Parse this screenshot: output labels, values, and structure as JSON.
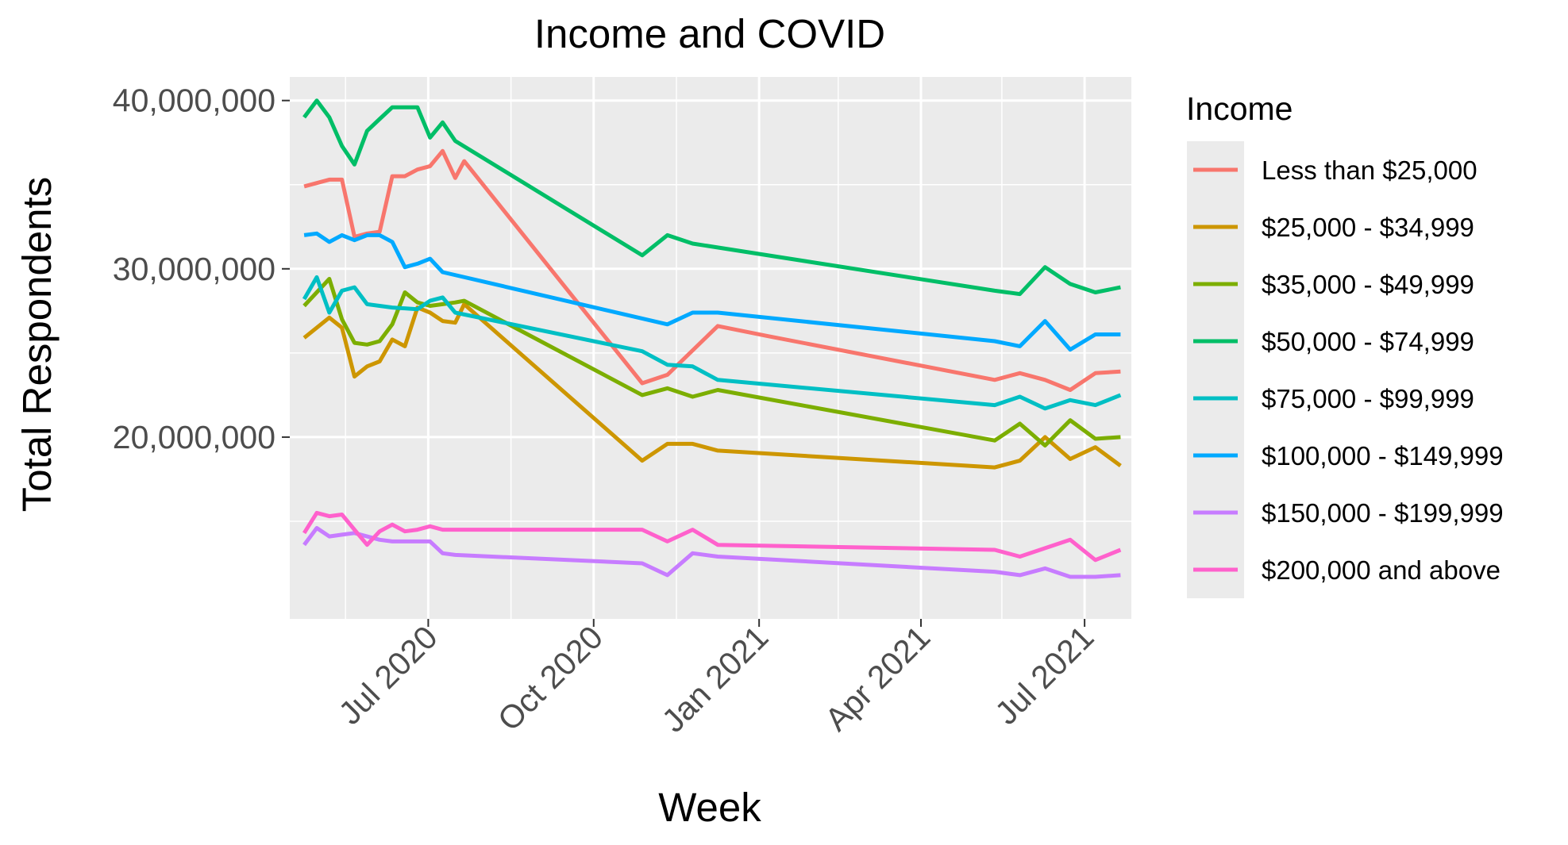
{
  "chart_data": {
    "type": "line",
    "title": "Income and COVID",
    "xlabel": "Week",
    "ylabel": "Total Respondents",
    "legend_title": "Income",
    "legend_position": "right",
    "grid": true,
    "background": "#EBEBEB",
    "xlim": [
      "2020-04-15",
      "2021-07-27"
    ],
    "ylim": [
      9200000,
      41400000
    ],
    "x_ticks": [
      {
        "date": "2020-07-01",
        "label": "Jul 2020"
      },
      {
        "date": "2020-10-01",
        "label": "Oct 2020"
      },
      {
        "date": "2021-01-01",
        "label": "Jan 2021"
      },
      {
        "date": "2021-04-01",
        "label": "Apr 2021"
      },
      {
        "date": "2021-07-01",
        "label": "Jul 2021"
      }
    ],
    "x_minor_ticks": [
      "2020-05-16",
      "2020-08-16",
      "2020-11-16",
      "2021-02-14",
      "2021-05-16"
    ],
    "y_ticks": [
      {
        "value": 20000000,
        "label": "20,000,000"
      },
      {
        "value": 30000000,
        "label": "30,000,000"
      },
      {
        "value": 40000000,
        "label": "40,000,000"
      }
    ],
    "y_minor_ticks": [
      15000000,
      25000000,
      35000000
    ],
    "series": [
      {
        "name": "Less than $25,000",
        "color": "#F8766D",
        "points": [
          [
            "2020-04-23",
            34900000
          ],
          [
            "2020-05-07",
            35300000
          ],
          [
            "2020-05-14",
            35300000
          ],
          [
            "2020-05-21",
            31900000
          ],
          [
            "2020-05-28",
            32100000
          ],
          [
            "2020-06-04",
            32200000
          ],
          [
            "2020-06-11",
            35500000
          ],
          [
            "2020-06-18",
            35500000
          ],
          [
            "2020-06-25",
            35900000
          ],
          [
            "2020-07-02",
            36100000
          ],
          [
            "2020-07-09",
            37000000
          ],
          [
            "2020-07-16",
            35400000
          ],
          [
            "2020-07-21",
            36400000
          ],
          [
            "2020-10-28",
            23200000
          ],
          [
            "2020-11-11",
            23700000
          ],
          [
            "2020-12-09",
            26600000
          ],
          [
            "2021-01-06",
            26000000
          ],
          [
            "2021-05-12",
            23400000
          ],
          [
            "2021-05-26",
            23800000
          ],
          [
            "2021-06-09",
            23400000
          ],
          [
            "2021-06-23",
            22800000
          ],
          [
            "2021-07-07",
            23800000
          ],
          [
            "2021-07-21",
            23900000
          ]
        ]
      },
      {
        "name": "$25,000 - $34,999",
        "color": "#CD9600",
        "points": [
          [
            "2020-04-23",
            25900000
          ],
          [
            "2020-05-07",
            27100000
          ],
          [
            "2020-05-14",
            26500000
          ],
          [
            "2020-05-21",
            23600000
          ],
          [
            "2020-05-28",
            24200000
          ],
          [
            "2020-06-04",
            24500000
          ],
          [
            "2020-06-11",
            25800000
          ],
          [
            "2020-06-18",
            25400000
          ],
          [
            "2020-06-25",
            27700000
          ],
          [
            "2020-07-02",
            27400000
          ],
          [
            "2020-07-09",
            26900000
          ],
          [
            "2020-07-16",
            26800000
          ],
          [
            "2020-07-21",
            27900000
          ],
          [
            "2020-10-28",
            18600000
          ],
          [
            "2020-11-11",
            19600000
          ],
          [
            "2020-11-25",
            19600000
          ],
          [
            "2020-12-09",
            19200000
          ],
          [
            "2021-05-12",
            18200000
          ],
          [
            "2021-05-26",
            18600000
          ],
          [
            "2021-06-09",
            20000000
          ],
          [
            "2021-06-23",
            18700000
          ],
          [
            "2021-07-07",
            19400000
          ],
          [
            "2021-07-21",
            18300000
          ]
        ]
      },
      {
        "name": "$35,000 - $49,999",
        "color": "#7CAE00",
        "points": [
          [
            "2020-04-23",
            27800000
          ],
          [
            "2020-05-07",
            29400000
          ],
          [
            "2020-05-14",
            27000000
          ],
          [
            "2020-05-21",
            25600000
          ],
          [
            "2020-05-28",
            25500000
          ],
          [
            "2020-06-04",
            25700000
          ],
          [
            "2020-06-11",
            26700000
          ],
          [
            "2020-06-18",
            28600000
          ],
          [
            "2020-06-25",
            28000000
          ],
          [
            "2020-07-02",
            27800000
          ],
          [
            "2020-07-09",
            27900000
          ],
          [
            "2020-07-16",
            28000000
          ],
          [
            "2020-07-21",
            28100000
          ],
          [
            "2020-10-28",
            22500000
          ],
          [
            "2020-11-11",
            22900000
          ],
          [
            "2020-11-25",
            22400000
          ],
          [
            "2020-12-09",
            22800000
          ],
          [
            "2021-05-12",
            19800000
          ],
          [
            "2021-05-26",
            20800000
          ],
          [
            "2021-06-09",
            19500000
          ],
          [
            "2021-06-23",
            21000000
          ],
          [
            "2021-07-07",
            19900000
          ],
          [
            "2021-07-21",
            20000000
          ]
        ]
      },
      {
        "name": "$50,000 - $74,999",
        "color": "#00BE67",
        "points": [
          [
            "2020-04-23",
            39000000
          ],
          [
            "2020-04-30",
            40000000
          ],
          [
            "2020-05-07",
            39000000
          ],
          [
            "2020-05-14",
            37300000
          ],
          [
            "2020-05-21",
            36200000
          ],
          [
            "2020-05-28",
            38200000
          ],
          [
            "2020-06-04",
            38900000
          ],
          [
            "2020-06-11",
            39600000
          ],
          [
            "2020-06-25",
            39600000
          ],
          [
            "2020-07-02",
            37800000
          ],
          [
            "2020-07-09",
            38700000
          ],
          [
            "2020-07-16",
            37600000
          ],
          [
            "2020-10-28",
            30800000
          ],
          [
            "2020-11-11",
            32000000
          ],
          [
            "2020-11-25",
            31500000
          ],
          [
            "2021-05-12",
            28700000
          ],
          [
            "2021-05-26",
            28500000
          ],
          [
            "2021-06-09",
            30100000
          ],
          [
            "2021-06-23",
            29100000
          ],
          [
            "2021-07-07",
            28600000
          ],
          [
            "2021-07-21",
            28900000
          ]
        ]
      },
      {
        "name": "$75,000 - $99,999",
        "color": "#00BFC4",
        "points": [
          [
            "2020-04-23",
            28200000
          ],
          [
            "2020-04-30",
            29500000
          ],
          [
            "2020-05-07",
            27400000
          ],
          [
            "2020-05-14",
            28700000
          ],
          [
            "2020-05-21",
            28900000
          ],
          [
            "2020-05-28",
            27900000
          ],
          [
            "2020-06-04",
            27800000
          ],
          [
            "2020-06-11",
            27700000
          ],
          [
            "2020-06-25",
            27600000
          ],
          [
            "2020-07-02",
            28100000
          ],
          [
            "2020-07-09",
            28300000
          ],
          [
            "2020-07-16",
            27400000
          ],
          [
            "2020-10-28",
            25100000
          ],
          [
            "2020-11-11",
            24300000
          ],
          [
            "2020-11-25",
            24200000
          ],
          [
            "2020-12-09",
            23400000
          ],
          [
            "2021-05-12",
            21900000
          ],
          [
            "2021-05-26",
            22400000
          ],
          [
            "2021-06-09",
            21700000
          ],
          [
            "2021-06-23",
            22200000
          ],
          [
            "2021-07-07",
            21900000
          ],
          [
            "2021-07-21",
            22500000
          ]
        ]
      },
      {
        "name": "$100,000 - $149,999",
        "color": "#00A9FF",
        "points": [
          [
            "2020-04-23",
            32000000
          ],
          [
            "2020-04-30",
            32100000
          ],
          [
            "2020-05-07",
            31600000
          ],
          [
            "2020-05-14",
            32000000
          ],
          [
            "2020-05-21",
            31700000
          ],
          [
            "2020-05-28",
            32000000
          ],
          [
            "2020-06-04",
            32000000
          ],
          [
            "2020-06-11",
            31600000
          ],
          [
            "2020-06-18",
            30100000
          ],
          [
            "2020-06-25",
            30300000
          ],
          [
            "2020-07-02",
            30600000
          ],
          [
            "2020-07-09",
            29800000
          ],
          [
            "2020-11-11",
            26700000
          ],
          [
            "2020-11-25",
            27400000
          ],
          [
            "2020-12-09",
            27400000
          ],
          [
            "2021-05-12",
            25700000
          ],
          [
            "2021-05-26",
            25400000
          ],
          [
            "2021-06-09",
            26900000
          ],
          [
            "2021-06-23",
            25200000
          ],
          [
            "2021-07-07",
            26100000
          ],
          [
            "2021-07-21",
            26100000
          ]
        ]
      },
      {
        "name": "$150,000 - $199,999",
        "color": "#C77CFF",
        "points": [
          [
            "2020-04-23",
            13600000
          ],
          [
            "2020-04-30",
            14600000
          ],
          [
            "2020-05-07",
            14100000
          ],
          [
            "2020-05-14",
            14200000
          ],
          [
            "2020-05-21",
            14300000
          ],
          [
            "2020-05-28",
            14100000
          ],
          [
            "2020-06-04",
            13900000
          ],
          [
            "2020-06-11",
            13800000
          ],
          [
            "2020-06-25",
            13800000
          ],
          [
            "2020-07-02",
            13800000
          ],
          [
            "2020-07-09",
            13100000
          ],
          [
            "2020-07-16",
            13000000
          ],
          [
            "2020-10-28",
            12500000
          ],
          [
            "2020-11-11",
            11800000
          ],
          [
            "2020-11-25",
            13100000
          ],
          [
            "2020-12-09",
            12900000
          ],
          [
            "2021-05-12",
            12000000
          ],
          [
            "2021-05-26",
            11800000
          ],
          [
            "2021-06-09",
            12200000
          ],
          [
            "2021-06-23",
            11700000
          ],
          [
            "2021-07-07",
            11700000
          ],
          [
            "2021-07-21",
            11800000
          ]
        ]
      },
      {
        "name": "$200,000 and above",
        "color": "#FF61CC",
        "points": [
          [
            "2020-04-23",
            14300000
          ],
          [
            "2020-04-30",
            15500000
          ],
          [
            "2020-05-07",
            15300000
          ],
          [
            "2020-05-14",
            15400000
          ],
          [
            "2020-05-21",
            14500000
          ],
          [
            "2020-05-28",
            13600000
          ],
          [
            "2020-06-04",
            14400000
          ],
          [
            "2020-06-11",
            14800000
          ],
          [
            "2020-06-18",
            14400000
          ],
          [
            "2020-06-25",
            14500000
          ],
          [
            "2020-07-02",
            14700000
          ],
          [
            "2020-07-09",
            14500000
          ],
          [
            "2020-10-28",
            14500000
          ],
          [
            "2020-11-11",
            13800000
          ],
          [
            "2020-11-25",
            14500000
          ],
          [
            "2020-12-09",
            13600000
          ],
          [
            "2021-05-12",
            13300000
          ],
          [
            "2021-05-26",
            12900000
          ],
          [
            "2021-06-09",
            13400000
          ],
          [
            "2021-06-23",
            13900000
          ],
          [
            "2021-07-07",
            12700000
          ],
          [
            "2021-07-21",
            13300000
          ]
        ]
      }
    ]
  }
}
